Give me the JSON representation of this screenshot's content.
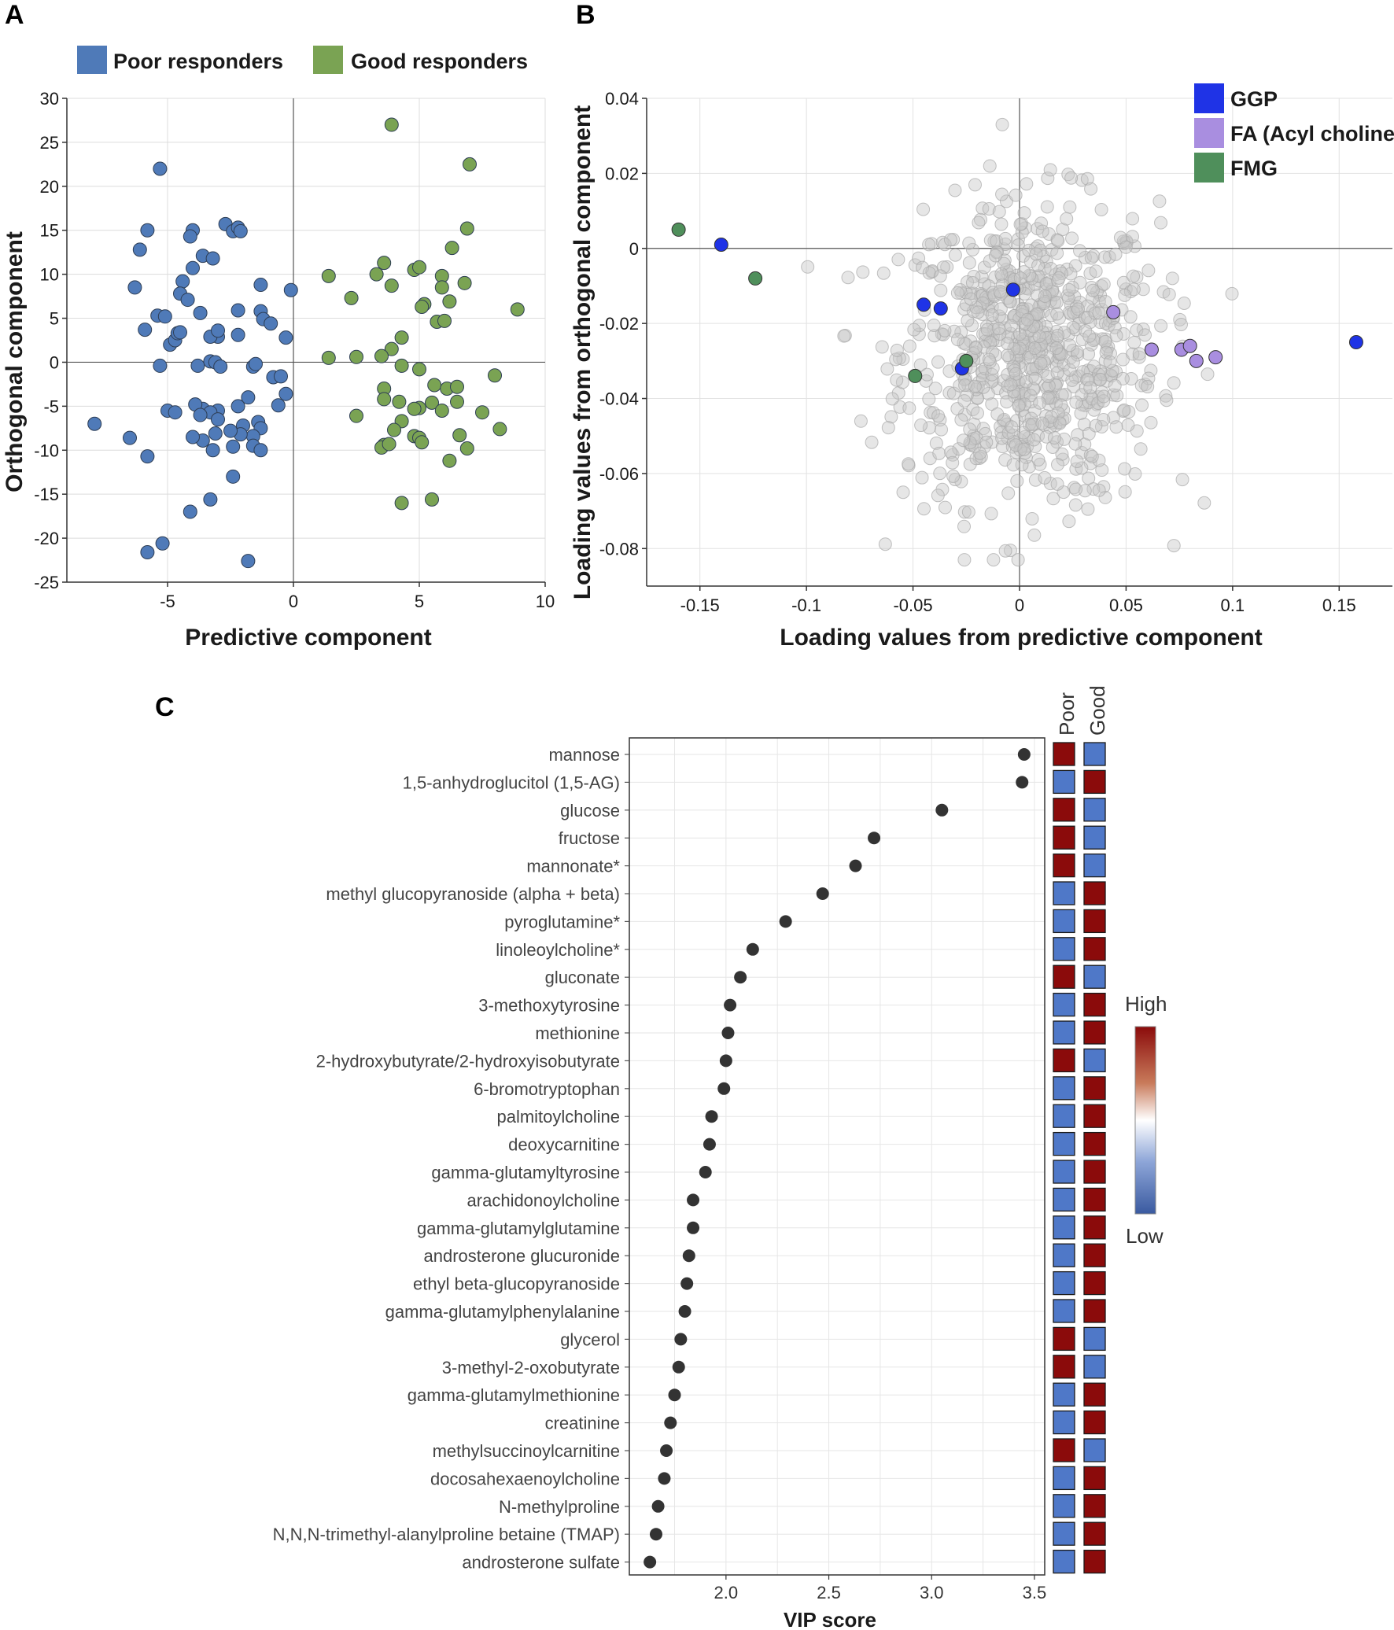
{
  "panels": {
    "a": "A",
    "b": "B",
    "c": "C"
  },
  "chart_data": [
    {
      "type": "scatter",
      "panel": "A",
      "xlabel": "Predictive component",
      "ylabel": "Orthogonal component",
      "xlim": [
        -9,
        10
      ],
      "ylim": [
        -25,
        30
      ],
      "xticks": [
        -5,
        0,
        5,
        10
      ],
      "yticks": [
        -25,
        -20,
        -15,
        -10,
        -5,
        0,
        5,
        10,
        15,
        20,
        25,
        30
      ],
      "grid": true,
      "legend_position": "top",
      "series": [
        {
          "name": "Poor responders",
          "color": "#4f7ab8",
          "points": [
            [
              -5.3,
              22
            ],
            [
              -5.8,
              15
            ],
            [
              -6.1,
              12.8
            ],
            [
              -6.3,
              8.5
            ],
            [
              -5.9,
              3.7
            ],
            [
              -5.4,
              5.3
            ],
            [
              -5.1,
              5.2
            ],
            [
              -4.0,
              15
            ],
            [
              -4.1,
              14.3
            ],
            [
              -3.6,
              12.1
            ],
            [
              -3.2,
              11.8
            ],
            [
              -4.0,
              10.7
            ],
            [
              -4.4,
              9.2
            ],
            [
              -4.5,
              7.8
            ],
            [
              -4.2,
              7.1
            ],
            [
              -2.7,
              15.7
            ],
            [
              -2.4,
              14.9
            ],
            [
              -2.2,
              15.3
            ],
            [
              -2.1,
              14.9
            ],
            [
              -1.3,
              8.8
            ],
            [
              -0.1,
              8.2
            ],
            [
              -1.3,
              5.8
            ],
            [
              -1.2,
              4.9
            ],
            [
              -0.9,
              4.4
            ],
            [
              -2.2,
              5.9
            ],
            [
              -3.0,
              2.9
            ],
            [
              -3.3,
              2.9
            ],
            [
              -3.0,
              3.6
            ],
            [
              -2.2,
              3.1
            ],
            [
              -0.3,
              2.8
            ],
            [
              -3.7,
              5.6
            ],
            [
              -4.9,
              2.0
            ],
            [
              -4.7,
              2.5
            ],
            [
              -4.6,
              3.3
            ],
            [
              -4.5,
              3.4
            ],
            [
              -5.3,
              -0.4
            ],
            [
              -5.0,
              -5.5
            ],
            [
              -4.7,
              -5.7
            ],
            [
              -3.8,
              -0.4
            ],
            [
              -3.3,
              0.1
            ],
            [
              -3.1,
              0.0
            ],
            [
              -2.9,
              -0.5
            ],
            [
              -1.6,
              -0.5
            ],
            [
              -1.5,
              -0.2
            ],
            [
              -0.8,
              -1.7
            ],
            [
              -0.5,
              -1.6
            ],
            [
              -0.3,
              -3.6
            ],
            [
              -0.6,
              -4.9
            ],
            [
              -1.8,
              -4.0
            ],
            [
              -2.2,
              -5.0
            ],
            [
              -3.0,
              -5.5
            ],
            [
              -3.6,
              -5.3
            ],
            [
              -3.3,
              -5.7
            ],
            [
              -3.9,
              -4.8
            ],
            [
              -3.7,
              -6.0
            ],
            [
              -3.0,
              -6.5
            ],
            [
              -1.4,
              -6.8
            ],
            [
              -1.3,
              -7.5
            ],
            [
              -1.6,
              -8.4
            ],
            [
              -1.6,
              -9.5
            ],
            [
              -2.0,
              -7.2
            ],
            [
              -2.1,
              -8.2
            ],
            [
              -2.5,
              -7.8
            ],
            [
              -1.3,
              -10.0
            ],
            [
              -2.4,
              -9.6
            ],
            [
              -3.1,
              -8.1
            ],
            [
              -3.6,
              -8.9
            ],
            [
              -3.2,
              -10.0
            ],
            [
              -4.0,
              -8.5
            ],
            [
              -2.4,
              -13.0
            ],
            [
              -3.3,
              -15.6
            ],
            [
              -4.1,
              -17.0
            ],
            [
              -7.9,
              -7.0
            ],
            [
              -6.5,
              -8.6
            ],
            [
              -5.8,
              -10.7
            ],
            [
              -5.2,
              -20.6
            ],
            [
              -5.8,
              -21.6
            ],
            [
              -1.8,
              -22.6
            ]
          ]
        },
        {
          "name": "Good responders",
          "color": "#7aa353",
          "points": [
            [
              3.9,
              27
            ],
            [
              7.0,
              22.5
            ],
            [
              6.9,
              15.2
            ],
            [
              6.3,
              13.0
            ],
            [
              3.6,
              11.3
            ],
            [
              4.8,
              10.5
            ],
            [
              3.3,
              10.0
            ],
            [
              5.0,
              10.8
            ],
            [
              5.9,
              9.8
            ],
            [
              1.4,
              9.8
            ],
            [
              6.8,
              9.0
            ],
            [
              3.9,
              8.7
            ],
            [
              5.9,
              8.5
            ],
            [
              2.3,
              7.3
            ],
            [
              6.2,
              6.9
            ],
            [
              5.2,
              6.6
            ],
            [
              5.1,
              6.3
            ],
            [
              8.9,
              6.0
            ],
            [
              5.7,
              4.6
            ],
            [
              6.0,
              4.7
            ],
            [
              4.3,
              2.8
            ],
            [
              3.9,
              1.5
            ],
            [
              1.4,
              0.5
            ],
            [
              2.5,
              0.6
            ],
            [
              3.5,
              0.7
            ],
            [
              4.3,
              -0.4
            ],
            [
              5.0,
              -0.8
            ],
            [
              3.6,
              -3.0
            ],
            [
              5.6,
              -2.6
            ],
            [
              6.1,
              -3.0
            ],
            [
              6.5,
              -2.8
            ],
            [
              8.0,
              -1.5
            ],
            [
              3.6,
              -4.2
            ],
            [
              4.2,
              -4.5
            ],
            [
              5.0,
              -5.2
            ],
            [
              5.5,
              -4.6
            ],
            [
              4.8,
              -5.3
            ],
            [
              5.9,
              -5.5
            ],
            [
              6.5,
              -4.5
            ],
            [
              2.5,
              -6.1
            ],
            [
              4.3,
              -6.7
            ],
            [
              7.5,
              -5.7
            ],
            [
              4.0,
              -7.7
            ],
            [
              3.6,
              -9.4
            ],
            [
              3.5,
              -9.7
            ],
            [
              3.8,
              -9.3
            ],
            [
              4.8,
              -8.4
            ],
            [
              5.0,
              -8.6
            ],
            [
              5.1,
              -9.1
            ],
            [
              6.6,
              -8.3
            ],
            [
              8.2,
              -7.6
            ],
            [
              6.9,
              -9.8
            ],
            [
              6.2,
              -11.2
            ],
            [
              4.3,
              -16.0
            ],
            [
              5.5,
              -15.6
            ]
          ]
        }
      ]
    },
    {
      "type": "scatter",
      "panel": "B",
      "xlabel": "Loading values from predictive component",
      "ylabel": "Loading values from orthogonal component",
      "xlim": [
        -0.175,
        0.175
      ],
      "ylim": [
        -0.09,
        0.04
      ],
      "xticks": [
        -0.15,
        -0.1,
        -0.05,
        0,
        0.05,
        0.1,
        0.15
      ],
      "ytick_values": [
        -0.08,
        -0.06,
        -0.04,
        -0.02,
        0,
        0.02,
        0.04
      ],
      "ytick_labels": [
        "-0.08",
        "-0.06",
        "-0.04",
        "-0.02",
        "0",
        "0.02",
        "0.04"
      ],
      "xtick_labels": [
        "-0.15",
        "-0.1",
        "-0.05",
        "0",
        "0.05",
        "0.1",
        "0.15"
      ],
      "grid": true,
      "legend_position": "top-right",
      "background_color": "#c8c8c8",
      "background_count": 800,
      "series": [
        {
          "name": "GGP",
          "color": "#1f33e6",
          "points": [
            [
              -0.14,
              0.001
            ],
            [
              0.158,
              -0.025
            ],
            [
              -0.045,
              -0.015
            ],
            [
              -0.037,
              -0.016
            ],
            [
              -0.027,
              -0.032
            ],
            [
              -0.003,
              -0.011
            ]
          ]
        },
        {
          "name": "FA (Acyl choline)",
          "color": "#a98ee0",
          "points": [
            [
              0.044,
              -0.017
            ],
            [
              0.062,
              -0.027
            ],
            [
              0.076,
              -0.027
            ],
            [
              0.08,
              -0.026
            ],
            [
              0.083,
              -0.03
            ],
            [
              0.092,
              -0.029
            ]
          ]
        },
        {
          "name": "FMG",
          "color": "#4f8f5b",
          "points": [
            [
              -0.16,
              0.005
            ],
            [
              -0.124,
              -0.008
            ],
            [
              -0.049,
              -0.034
            ],
            [
              -0.025,
              -0.03
            ]
          ]
        }
      ]
    },
    {
      "type": "scatter",
      "panel": "C",
      "xlabel": "VIP score",
      "xlim": [
        1.53,
        3.55
      ],
      "xticks": [
        2.0,
        2.5,
        3.0,
        3.5
      ],
      "xtick_labels": [
        "2.0",
        "2.5",
        "3.0",
        "3.5"
      ],
      "grid": true,
      "categories": [
        "mannose",
        "1,5-anhydroglucitol (1,5-AG)",
        "glucose",
        "fructose",
        "mannonate*",
        "methyl glucopyranoside (alpha + beta)",
        "pyroglutamine*",
        "linoleoylcholine*",
        "gluconate",
        "3-methoxytyrosine",
        "methionine",
        "2-hydroxybutyrate/2-hydroxyisobutyrate",
        "6-bromotryptophan",
        "palmitoylcholine",
        "deoxycarnitine",
        "gamma-glutamyltyrosine",
        "arachidonoylcholine",
        "gamma-glutamylglutamine",
        "androsterone glucuronide",
        "ethyl beta-glucopyranoside",
        "gamma-glutamylphenylalanine",
        "glycerol",
        "3-methyl-2-oxobutyrate",
        "gamma-glutamylmethionine",
        "creatinine",
        "methylsuccinoylcarnitine",
        "docosahexaenoylcholine",
        "N-methylproline",
        "N,N,N-trimethyl-alanylproline betaine (TMAP)",
        "androsterone sulfate"
      ],
      "values": [
        3.45,
        3.44,
        3.05,
        2.72,
        2.63,
        2.47,
        2.29,
        2.13,
        2.07,
        2.02,
        2.01,
        2.0,
        1.99,
        1.93,
        1.92,
        1.9,
        1.84,
        1.84,
        1.82,
        1.81,
        1.8,
        1.78,
        1.77,
        1.75,
        1.73,
        1.71,
        1.7,
        1.67,
        1.66,
        1.63
      ],
      "heatmap": {
        "columns": [
          "Poor",
          "Good"
        ],
        "high_color": "#8b0b0b",
        "low_color": "#4f78c8",
        "poor_level": [
          "high",
          "low",
          "high",
          "high",
          "high",
          "low",
          "low",
          "low",
          "high",
          "low",
          "low",
          "high",
          "low",
          "low",
          "low",
          "low",
          "low",
          "low",
          "low",
          "low",
          "low",
          "high",
          "high",
          "low",
          "low",
          "high",
          "low",
          "low",
          "low",
          "low"
        ]
      },
      "colorbar": {
        "high_label": "High",
        "low_label": "Low"
      }
    }
  ]
}
